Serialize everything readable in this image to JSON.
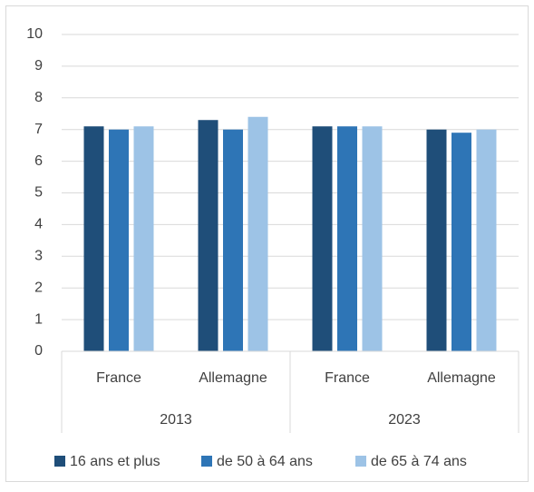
{
  "chart_data": {
    "type": "bar",
    "groups": [
      {
        "name": "2013",
        "categories": [
          "France",
          "Allemagne"
        ]
      },
      {
        "name": "2023",
        "categories": [
          "France",
          "Allemagne"
        ]
      }
    ],
    "series": [
      {
        "name": "16 ans et plus",
        "color": "#1f4e79",
        "values": [
          7.1,
          7.3,
          7.1,
          7.0
        ]
      },
      {
        "name": "de 50 à 64 ans",
        "color": "#2e75b6",
        "values": [
          7.0,
          7.0,
          7.1,
          6.9
        ]
      },
      {
        "name": "de 65 à 74 ans",
        "color": "#9dc3e6",
        "values": [
          7.1,
          7.4,
          7.1,
          7.0
        ]
      }
    ],
    "ylim": [
      0,
      10
    ],
    "yticks": [
      0,
      1,
      2,
      3,
      4,
      5,
      6,
      7,
      8,
      9,
      10
    ],
    "grid": true,
    "legend": "bottom"
  }
}
